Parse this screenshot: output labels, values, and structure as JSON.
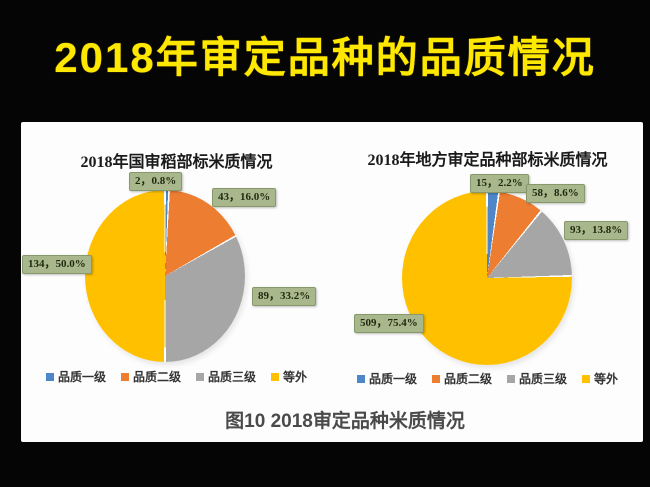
{
  "slide": {
    "title": "2018年审定品种的品质情况",
    "title_color": "#FFE800",
    "background_color": "#050505",
    "caption": "图10 2018审定品种米质情况"
  },
  "legend": {
    "position": "bottom",
    "items": [
      {
        "label": "品质一级",
        "color": "#4E86C8"
      },
      {
        "label": "品质二级",
        "color": "#ED7D31"
      },
      {
        "label": "品质三级",
        "color": "#A6A6A6"
      },
      {
        "label": "等外",
        "color": "#FFC000"
      }
    ]
  },
  "chart_data": [
    {
      "type": "pie",
      "title": "2018年国审稻部标米质情况",
      "categories": [
        "品质一级",
        "品质二级",
        "品质三级",
        "等外"
      ],
      "values": [
        2,
        43,
        89,
        134
      ],
      "percents": [
        0.8,
        16.0,
        33.2,
        50.0
      ],
      "percent_labels": [
        "2，0.8%",
        "43，16.0%",
        "89，33.2%",
        "134，50.0%"
      ],
      "colors": [
        "#4E86C8",
        "#ED7D31",
        "#A6A6A6",
        "#FFC000"
      ],
      "start_angle_deg": 0,
      "direction": "clockwise",
      "label_box_color": "#A9B88C",
      "slice_border_color": "#FFFFFF",
      "legend_position": "bottom"
    },
    {
      "type": "pie",
      "title": "2018年地方审定品种部标米质情况",
      "categories": [
        "品质一级",
        "品质二级",
        "品质三级",
        "等外"
      ],
      "values": [
        15,
        58,
        93,
        509
      ],
      "percents": [
        2.2,
        8.6,
        13.8,
        75.4
      ],
      "percent_labels": [
        "15，2.2%",
        "58，8.6%",
        "93，13.8%",
        "509，75.4%"
      ],
      "colors": [
        "#4E86C8",
        "#ED7D31",
        "#A6A6A6",
        "#FFC000"
      ],
      "start_angle_deg": 0,
      "direction": "clockwise",
      "label_box_color": "#A9B88C",
      "slice_border_color": "#FFFFFF",
      "legend_position": "bottom"
    }
  ]
}
